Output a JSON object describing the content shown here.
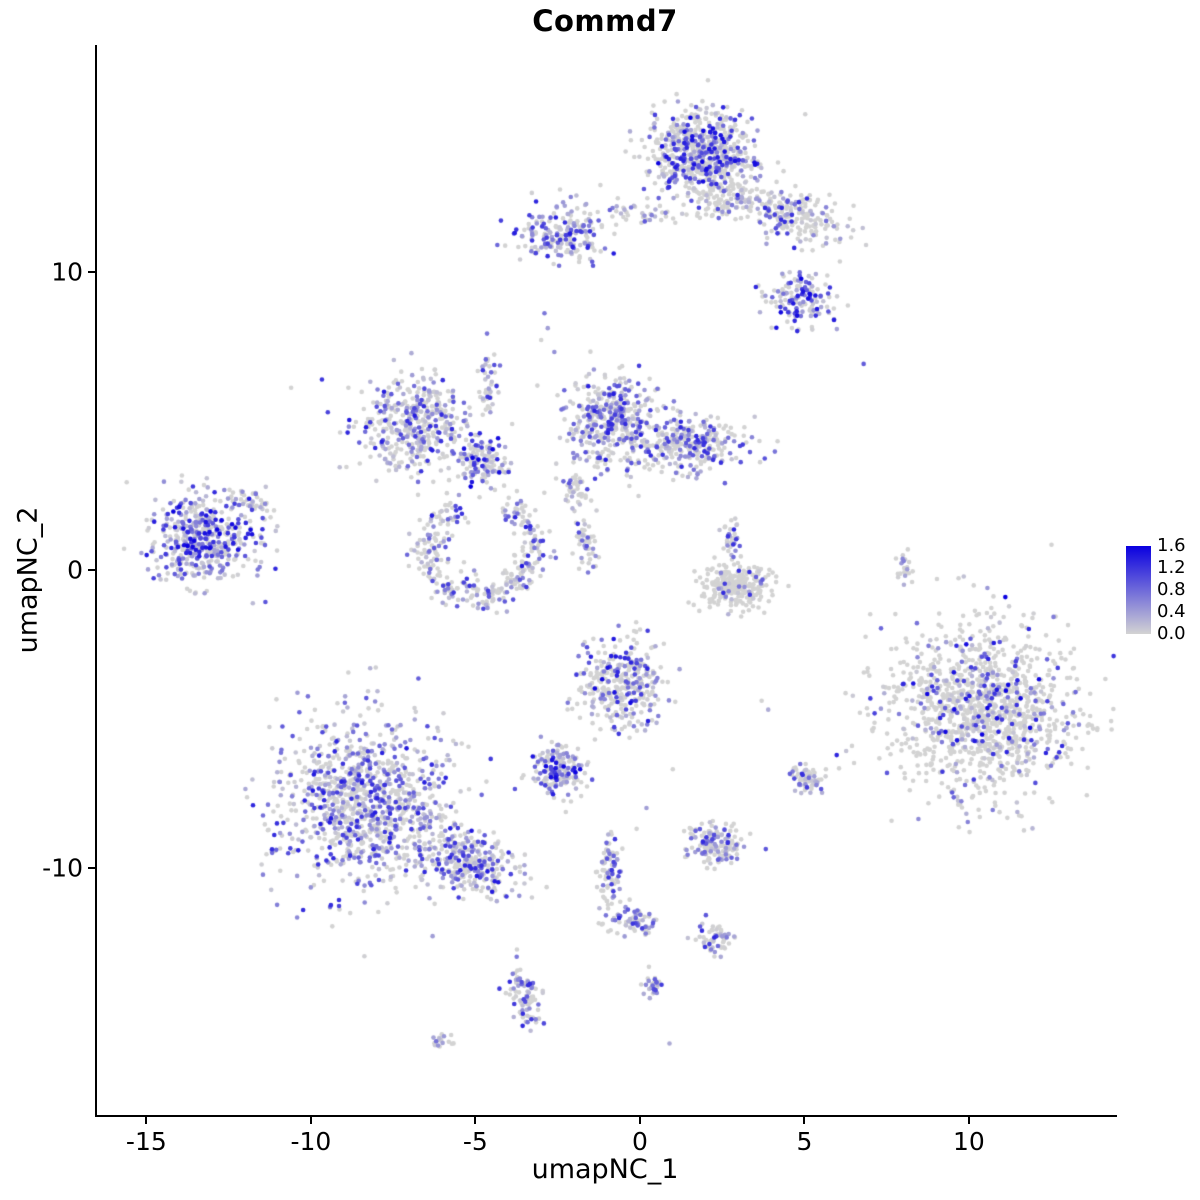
{
  "chart_data": {
    "type": "scatter",
    "title": "Commd7",
    "xlabel": "umapNC_1",
    "ylabel": "umapNC_2",
    "xlim": [
      -16.5,
      14.5
    ],
    "ylim": [
      -18.3,
      17.6
    ],
    "xticks": [
      -15,
      -10,
      -5,
      0,
      5,
      10
    ],
    "yticks": [
      -10,
      0,
      10
    ],
    "grid": false,
    "legend_position": "right",
    "colorbar": {
      "vmin": 0.0,
      "vmax": 1.6,
      "ticks": [
        1.6,
        1.2,
        0.8,
        0.4,
        0.0
      ],
      "low": "#D3D3D3",
      "high": "#0A00E0"
    },
    "point_radius": 2.3,
    "seed": 42,
    "clusters": [
      {
        "name": "top-main",
        "cx": 1.9,
        "cy": 14.0,
        "rx": 1.6,
        "ry": 1.4,
        "n": 650,
        "frac": 0.5,
        "vmax": 1.6
      },
      {
        "name": "top-main-lower-fringe",
        "cx": 2.6,
        "cy": 12.5,
        "rx": 1.2,
        "ry": 0.7,
        "n": 120,
        "frac": 0.35,
        "vmax": 1.3
      },
      {
        "name": "top-right-arm",
        "cx": 4.7,
        "cy": 11.8,
        "rx": 1.7,
        "ry": 0.9,
        "n": 200,
        "frac": 0.3,
        "vmax": 1.3,
        "rot": -25
      },
      {
        "name": "upper-right-blob",
        "cx": 4.9,
        "cy": 9.1,
        "rx": 1.0,
        "ry": 0.9,
        "n": 140,
        "frac": 0.65,
        "vmax": 1.6
      },
      {
        "name": "upper-left-blob",
        "cx": -2.4,
        "cy": 11.3,
        "rx": 1.3,
        "ry": 0.9,
        "n": 200,
        "frac": 0.6,
        "vmax": 1.4
      },
      {
        "name": "upper-bridge",
        "cx": 0.1,
        "cy": 11.9,
        "rx": 1.4,
        "ry": 0.5,
        "n": 45,
        "frac": 0.4,
        "vmax": 1.1
      },
      {
        "name": "mid-left-cluster",
        "cx": -6.9,
        "cy": 4.9,
        "rx": 1.7,
        "ry": 1.5,
        "n": 420,
        "frac": 0.5,
        "vmax": 1.4
      },
      {
        "name": "mid-connector-node",
        "cx": -4.8,
        "cy": 3.6,
        "rx": 0.8,
        "ry": 0.75,
        "n": 130,
        "frac": 0.6,
        "vmax": 1.6
      },
      {
        "name": "mid-connector-strand",
        "cx": -4.6,
        "cy": 6.3,
        "rx": 0.35,
        "ry": 1.2,
        "n": 45,
        "frac": 0.5,
        "vmax": 1.2
      },
      {
        "name": "mid-center-cluster",
        "cx": -0.8,
        "cy": 5.0,
        "rx": 1.4,
        "ry": 1.5,
        "n": 430,
        "frac": 0.6,
        "vmax": 1.4
      },
      {
        "name": "mid-right-lobe",
        "cx": 1.6,
        "cy": 4.2,
        "rx": 1.5,
        "ry": 1.0,
        "n": 280,
        "frac": 0.5,
        "vmax": 1.3
      },
      {
        "name": "center-strand-upper",
        "cx": -1.9,
        "cy": 2.6,
        "rx": 0.45,
        "ry": 0.8,
        "n": 40,
        "frac": 0.45,
        "vmax": 1.1
      },
      {
        "name": "center-strand-lower",
        "cx": -1.6,
        "cy": 0.9,
        "rx": 0.35,
        "ry": 0.9,
        "n": 45,
        "frac": 0.45,
        "vmax": 1.2
      },
      {
        "name": "far-left-cluster",
        "cx": -13.3,
        "cy": 1.1,
        "rx": 1.6,
        "ry": 1.5,
        "n": 480,
        "frac": 0.72,
        "vmax": 1.6
      },
      {
        "name": "far-left-tail",
        "cx": -11.7,
        "cy": 2.2,
        "rx": 0.7,
        "ry": 0.4,
        "n": 40,
        "frac": 0.5,
        "vmax": 1.2,
        "rot": -20
      },
      {
        "name": "c-ring-cluster",
        "cx": -4.8,
        "cy": 0.7,
        "n": 330,
        "frac": 0.5,
        "vmax": 1.4,
        "ring": {
          "r": 1.6,
          "w": 0.55,
          "a0": 115,
          "a1": 425
        }
      },
      {
        "name": "small-mid-blob",
        "cx": 2.9,
        "cy": -0.5,
        "rx": 1.0,
        "ry": 0.75,
        "n": 260,
        "frac": 0.12,
        "vmax": 1.3
      },
      {
        "name": "small-mid-strand",
        "cx": 2.8,
        "cy": 1.0,
        "rx": 0.3,
        "ry": 0.8,
        "n": 35,
        "frac": 0.55,
        "vmax": 1.4
      },
      {
        "name": "tiny-right-strand",
        "cx": 8.0,
        "cy": 0.2,
        "rx": 0.25,
        "ry": 0.8,
        "n": 22,
        "frac": 0.35,
        "vmax": 1.3
      },
      {
        "name": "big-right-cluster",
        "cx": 10.4,
        "cy": -4.7,
        "rx": 2.9,
        "ry": 2.8,
        "n": 1250,
        "frac": 0.25,
        "vmax": 1.6
      },
      {
        "name": "center-low-cluster",
        "cx": -0.5,
        "cy": -3.9,
        "rx": 1.3,
        "ry": 1.6,
        "n": 340,
        "frac": 0.45,
        "vmax": 1.6
      },
      {
        "name": "small-dense-cluster",
        "cx": -2.5,
        "cy": -6.8,
        "rx": 0.8,
        "ry": 0.8,
        "n": 170,
        "frac": 0.65,
        "vmax": 1.6
      },
      {
        "name": "small-right-blob",
        "cx": 5.1,
        "cy": -7.1,
        "rx": 0.5,
        "ry": 0.5,
        "n": 60,
        "frac": 0.6,
        "vmax": 1.3
      },
      {
        "name": "bottom-left-main",
        "cx": -8.4,
        "cy": -7.8,
        "rx": 2.6,
        "ry": 2.7,
        "n": 1050,
        "frac": 0.58,
        "vmax": 1.4
      },
      {
        "name": "bottom-left-extension",
        "cx": -5.2,
        "cy": -9.8,
        "rx": 1.6,
        "ry": 1.1,
        "n": 300,
        "frac": 0.55,
        "vmax": 1.4,
        "rot": -20
      },
      {
        "name": "small-bottom-blob",
        "cx": 2.3,
        "cy": -9.2,
        "rx": 0.9,
        "ry": 0.75,
        "n": 150,
        "frac": 0.45,
        "vmax": 1.3
      },
      {
        "name": "bottom-strand",
        "cx": -0.9,
        "cy": -10.3,
        "rx": 0.35,
        "ry": 1.6,
        "n": 85,
        "frac": 0.55,
        "vmax": 1.3
      },
      {
        "name": "bottom-strand-blob",
        "cx": -0.2,
        "cy": -11.7,
        "rx": 0.65,
        "ry": 0.5,
        "n": 65,
        "frac": 0.6,
        "vmax": 1.3
      },
      {
        "name": "bottom-small-blob",
        "cx": 2.3,
        "cy": -12.4,
        "rx": 0.5,
        "ry": 0.55,
        "n": 55,
        "frac": 0.6,
        "vmax": 1.3
      },
      {
        "name": "bottom-hook-strand",
        "cx": -3.5,
        "cy": -14.3,
        "rx": 0.45,
        "ry": 1.25,
        "n": 85,
        "frac": 0.6,
        "vmax": 1.3,
        "rot": 15
      },
      {
        "name": "bottom-tiny-left",
        "cx": -6.0,
        "cy": -15.8,
        "rx": 0.35,
        "ry": 0.3,
        "n": 18,
        "frac": 0.4,
        "vmax": 1.0
      },
      {
        "name": "bottom-tiny-center",
        "cx": 0.4,
        "cy": -13.9,
        "rx": 0.3,
        "ry": 0.5,
        "n": 28,
        "frac": 0.5,
        "vmax": 1.2
      }
    ],
    "singles": [
      {
        "x": 6.8,
        "y": 6.9,
        "v": 0.9
      },
      {
        "x": -10.6,
        "y": 6.1,
        "v": 0
      },
      {
        "x": -2.9,
        "y": 8.6,
        "v": 0.7
      },
      {
        "x": -2.8,
        "y": 8.1,
        "v": 0.4
      },
      {
        "x": -3.0,
        "y": 7.7,
        "v": 0
      },
      {
        "x": -2.6,
        "y": 7.3,
        "v": 0.5
      },
      {
        "x": -5.5,
        "y": 2.5,
        "v": 0.4
      },
      {
        "x": -5.8,
        "y": 3.0,
        "v": 0
      },
      {
        "x": 3.7,
        "y": -4.4,
        "v": 0
      },
      {
        "x": 3.9,
        "y": -4.7,
        "v": 0.3
      },
      {
        "x": 0.2,
        "y": -8.0,
        "v": 0.4
      },
      {
        "x": -0.1,
        "y": -8.7,
        "v": 0
      },
      {
        "x": 1.0,
        "y": -6.7,
        "v": 0
      },
      {
        "x": -2.1,
        "y": 12.5,
        "v": 0.6
      },
      {
        "x": -1.2,
        "y": 12.9,
        "v": 0
      },
      {
        "x": 5.9,
        "y": 8.4,
        "v": 0.5
      },
      {
        "x": 7.0,
        "y": -1.5,
        "v": 0
      },
      {
        "x": -6.3,
        "y": -12.3,
        "v": 0.4
      },
      {
        "x": 0.9,
        "y": -15.9,
        "v": 0.3
      }
    ]
  }
}
